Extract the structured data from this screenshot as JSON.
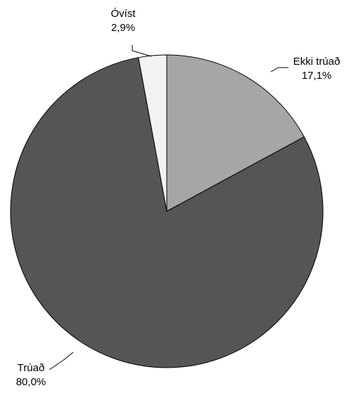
{
  "chart_data": {
    "type": "pie",
    "start_angle_deg": 0,
    "direction": "clockwise",
    "slices": [
      {
        "label": "Ekki trúað",
        "value": 17.1,
        "value_label": "17,1%",
        "color": "#a6a6a6"
      },
      {
        "label": "Trúað",
        "value": 80.0,
        "value_label": "80,0%",
        "color": "#555555"
      },
      {
        "label": "Óvíst",
        "value": 2.9,
        "value_label": "2,9%",
        "color": "#f2f2f2"
      }
    ],
    "legend": "none",
    "label_style": "outside labels with leader lines"
  }
}
